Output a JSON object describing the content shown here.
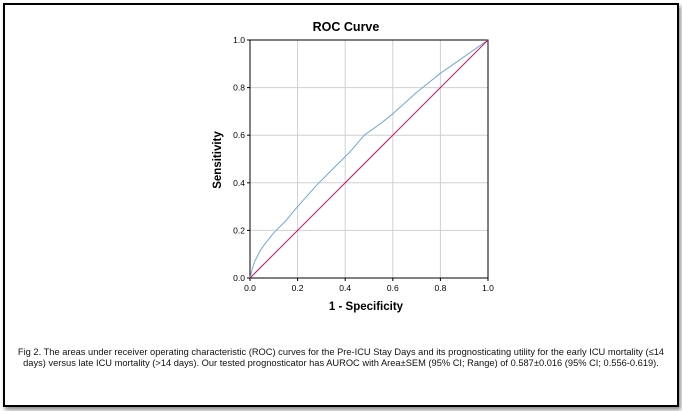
{
  "chart_data": {
    "type": "line",
    "title": "ROC Curve",
    "xlabel": "1 - Specificity",
    "ylabel": "Sensitivity",
    "xlim": [
      0.0,
      1.0
    ],
    "ylim": [
      0.0,
      1.0
    ],
    "x_ticks": [
      "0.0",
      "0.2",
      "0.4",
      "0.6",
      "0.8",
      "1.0"
    ],
    "y_ticks": [
      "0.0",
      "0.2",
      "0.4",
      "0.6",
      "0.8",
      "1.0"
    ],
    "grid": true,
    "legend": "none",
    "series": [
      {
        "color": "#6fa8dc",
        "x": [
          0.0,
          0.01,
          0.02,
          0.04,
          0.06,
          0.1,
          0.15,
          0.2,
          0.28,
          0.35,
          0.42,
          0.48,
          0.55,
          0.6,
          0.7,
          0.8,
          0.9,
          1.0
        ],
        "y": [
          0.0,
          0.04,
          0.07,
          0.11,
          0.14,
          0.19,
          0.24,
          0.3,
          0.39,
          0.46,
          0.53,
          0.6,
          0.65,
          0.69,
          0.78,
          0.86,
          0.93,
          1.0
        ]
      },
      {
        "color": "#c2185b",
        "x": [
          0.0,
          1.0
        ],
        "y": [
          0.0,
          1.0
        ]
      }
    ]
  },
  "caption": "Fig 2. The areas under receiver operating characteristic (ROC) curves for the Pre-ICU Stay Days and its prognosticating utility for the early ICU mortality (≤14 days) versus late ICU mortality (>14 days). Our tested prognosticator has AUROC with Area±SEM (95% CI; Range) of 0.587±0.016 (95% CI; 0.556-0.619)."
}
